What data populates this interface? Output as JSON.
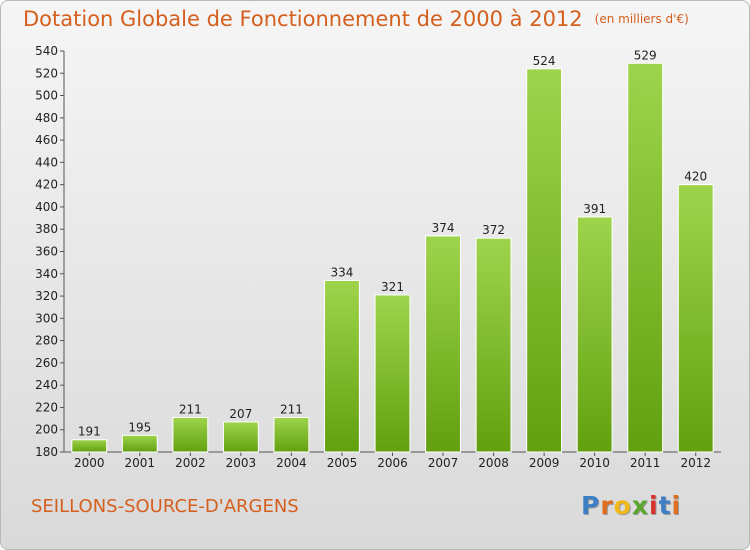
{
  "header": {
    "title": "Dotation Globale de Fonctionnement de 2000 à 2012",
    "unit": "(en milliers d'€)"
  },
  "footer": {
    "commune": "SEILLONS-SOURCE-D'ARGENS",
    "logo_letters": [
      "P",
      "r",
      "o",
      "x",
      "i",
      "t",
      "i"
    ]
  },
  "colors": {
    "title": "#d45f1e",
    "bar_top": "#9ed44c",
    "bar_bottom": "#62a00f",
    "logo": [
      "#3d7fc4",
      "#e06e1f",
      "#f0b81a",
      "#5aa62f",
      "#d8312e",
      "#3d7fc4",
      "#e06e1f"
    ]
  },
  "chart_data": {
    "type": "bar",
    "categories": [
      "2000",
      "2001",
      "2002",
      "2003",
      "2004",
      "2005",
      "2006",
      "2007",
      "2008",
      "2009",
      "2010",
      "2011",
      "2012"
    ],
    "values": [
      191,
      195,
      211,
      207,
      211,
      334,
      321,
      374,
      372,
      524,
      391,
      529,
      420
    ],
    "title": "Dotation Globale de Fonctionnement de 2000 à 2012",
    "xlabel": "",
    "ylabel": "",
    "ylim": [
      180,
      540
    ],
    "yticks": [
      180,
      200,
      220,
      240,
      260,
      280,
      300,
      320,
      340,
      360,
      380,
      400,
      420,
      440,
      460,
      480,
      500,
      520,
      540
    ],
    "grid": false,
    "data_labels": true
  }
}
